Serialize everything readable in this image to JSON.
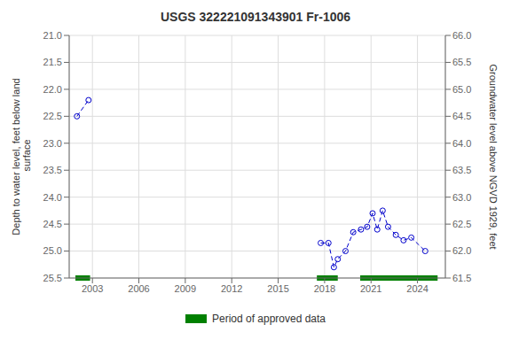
{
  "chart_data": {
    "type": "line",
    "title": "USGS 322221091343901 Fr-1006",
    "ylabel": "Depth to water level, feet below land\n surface",
    "y2label": "Groundwater level above NGVD 1929, feet",
    "xlim": [
      2001.5,
      2025.8
    ],
    "xticks": [
      2003,
      2006,
      2009,
      2012,
      2015,
      2018,
      2021,
      2024
    ],
    "ylim": [
      25.5,
      21.0
    ],
    "yticks": [
      {
        "value": 21.0,
        "label": "21.0"
      },
      {
        "value": 21.5,
        "label": "21.5"
      },
      {
        "value": 22.0,
        "label": "22.0"
      },
      {
        "value": 22.5,
        "label": "22.5"
      },
      {
        "value": 23.0,
        "label": "23.0"
      },
      {
        "value": 23.5,
        "label": "23.5"
      },
      {
        "value": 24.0,
        "label": "24.0"
      },
      {
        "value": 24.5,
        "label": "24.5"
      },
      {
        "value": 25.0,
        "label": "25.0"
      },
      {
        "value": 25.5,
        "label": "25.5"
      }
    ],
    "y2lim": [
      61.5,
      66.0
    ],
    "y2ticks": [
      61.5,
      {
        "value": 62.0,
        "label": "62.0"
      },
      62.5,
      {
        "value": 63.0,
        "label": "63.0"
      },
      63.5,
      {
        "value": 64.0,
        "label": "64.0"
      },
      64.5,
      {
        "value": 65.0,
        "label": "65.0"
      },
      65.5,
      {
        "value": 66.0,
        "label": "66.0"
      }
    ],
    "grid": true,
    "legend": "bottom",
    "series": [
      {
        "color": "#0000cc",
        "marker": "circle",
        "line_style": "dashed",
        "x": [
          2002.0,
          2002.75
        ],
        "values": [
          22.5,
          22.2
        ]
      },
      {
        "color": "#0000cc",
        "marker": "circle",
        "line_style": "dashed",
        "x": [
          2017.75,
          2018.25,
          2018.6,
          2018.85,
          2019.35,
          2019.85,
          2020.35,
          2020.75,
          2021.1,
          2021.4,
          2021.75,
          2022.1,
          2022.6,
          2023.1,
          2023.6,
          2024.5
        ],
        "values": [
          24.85,
          24.85,
          25.3,
          25.15,
          25.0,
          24.65,
          24.6,
          24.55,
          24.3,
          24.6,
          24.25,
          24.55,
          24.7,
          24.8,
          24.75,
          25.0
        ]
      }
    ],
    "approved_periods": {
      "name": "Period of approved data",
      "color": "#008000",
      "ranges": [
        [
          2001.9,
          2002.85
        ],
        [
          2017.5,
          2018.85
        ],
        [
          2020.3,
          2025.3
        ]
      ]
    }
  }
}
